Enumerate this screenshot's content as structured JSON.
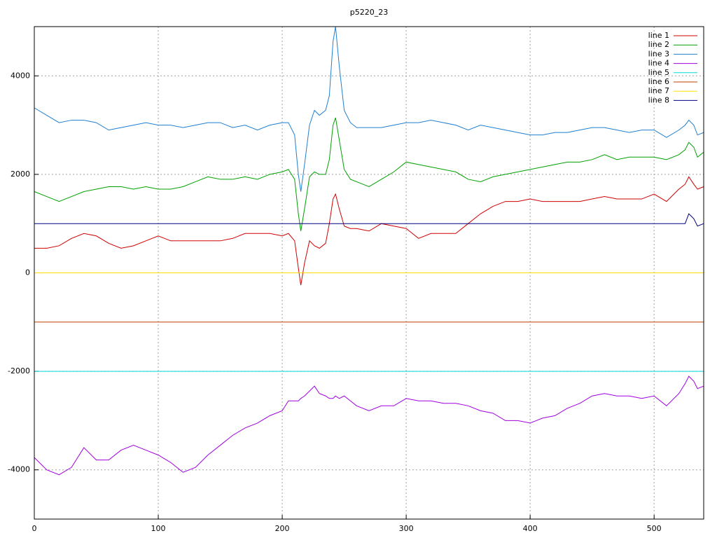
{
  "chart_data": {
    "type": "line",
    "title": "p5220_23",
    "x": [
      0,
      10,
      20,
      30,
      40,
      50,
      60,
      70,
      80,
      90,
      100,
      110,
      120,
      130,
      140,
      150,
      160,
      170,
      180,
      190,
      200,
      205,
      210,
      213,
      215,
      218,
      222,
      226,
      230,
      235,
      238,
      241,
      243,
      246,
      250,
      255,
      260,
      270,
      280,
      290,
      300,
      310,
      320,
      330,
      340,
      350,
      360,
      370,
      380,
      390,
      400,
      410,
      420,
      430,
      440,
      450,
      460,
      470,
      480,
      490,
      500,
      510,
      520,
      525,
      528,
      532,
      535,
      540
    ],
    "series": [
      {
        "name": "line 1",
        "color": "#d00000",
        "values": [
          500,
          500,
          550,
          700,
          800,
          750,
          600,
          500,
          550,
          650,
          750,
          650,
          650,
          650,
          650,
          650,
          700,
          800,
          800,
          800,
          750,
          800,
          650,
          100,
          -250,
          200,
          650,
          550,
          500,
          600,
          1000,
          1500,
          1600,
          1300,
          950,
          900,
          900,
          850,
          1000,
          950,
          900,
          700,
          800,
          800,
          800,
          1000,
          1200,
          1350,
          1450,
          1450,
          1500,
          1450,
          1450,
          1450,
          1450,
          1500,
          1550,
          1500,
          1500,
          1500,
          1600,
          1450,
          1700,
          1800,
          1950,
          1800,
          1700,
          1750
        ]
      },
      {
        "name": "line 2",
        "color": "#00a000",
        "values": [
          1650,
          1550,
          1450,
          1550,
          1650,
          1700,
          1750,
          1750,
          1700,
          1750,
          1700,
          1700,
          1750,
          1850,
          1950,
          1900,
          1900,
          1950,
          1900,
          2000,
          2050,
          2100,
          1900,
          1200,
          850,
          1300,
          1950,
          2050,
          2000,
          2000,
          2300,
          3000,
          3150,
          2700,
          2100,
          1900,
          1850,
          1750,
          1900,
          2050,
          2250,
          2200,
          2150,
          2100,
          2050,
          1900,
          1850,
          1950,
          2000,
          2050,
          2100,
          2150,
          2200,
          2250,
          2250,
          2300,
          2400,
          2300,
          2350,
          2350,
          2350,
          2300,
          2400,
          2500,
          2650,
          2550,
          2350,
          2450
        ]
      },
      {
        "name": "line 3",
        "color": "#1f7fd0",
        "values": [
          3350,
          3200,
          3050,
          3100,
          3100,
          3050,
          2900,
          2950,
          3000,
          3050,
          3000,
          3000,
          2950,
          3000,
          3050,
          3050,
          2950,
          3000,
          2900,
          3000,
          3050,
          3050,
          2800,
          2000,
          1650,
          2200,
          3000,
          3300,
          3200,
          3300,
          3600,
          4700,
          5000,
          4200,
          3300,
          3050,
          2950,
          2950,
          2950,
          3000,
          3050,
          3050,
          3100,
          3050,
          3000,
          2900,
          3000,
          2950,
          2900,
          2850,
          2800,
          2800,
          2850,
          2850,
          2900,
          2950,
          2950,
          2900,
          2850,
          2900,
          2900,
          2750,
          2900,
          3000,
          3100,
          3000,
          2800,
          2850
        ]
      },
      {
        "name": "line 4",
        "color": "#a000e0",
        "values": [
          -3750,
          -4000,
          -4100,
          -3950,
          -3550,
          -3800,
          -3800,
          -3600,
          -3500,
          -3600,
          -3700,
          -3850,
          -4050,
          -3950,
          -3700,
          -3500,
          -3300,
          -3150,
          -3050,
          -2900,
          -2800,
          -2600,
          -2600,
          -2600,
          -2550,
          -2500,
          -2400,
          -2300,
          -2450,
          -2500,
          -2550,
          -2550,
          -2500,
          -2550,
          -2500,
          -2600,
          -2700,
          -2800,
          -2700,
          -2700,
          -2550,
          -2600,
          -2600,
          -2650,
          -2650,
          -2700,
          -2800,
          -2850,
          -3000,
          -3000,
          -3050,
          -2950,
          -2900,
          -2750,
          -2650,
          -2500,
          -2450,
          -2500,
          -2500,
          -2550,
          -2500,
          -2700,
          -2450,
          -2250,
          -2100,
          -2200,
          -2350,
          -2300
        ]
      },
      {
        "name": "line 5",
        "color": "#00dcdc",
        "x": [
          0,
          540
        ],
        "values": [
          -2000,
          -2000
        ]
      },
      {
        "name": "line 6",
        "color": "#c04000",
        "x": [
          0,
          540
        ],
        "values": [
          -1000,
          -1000
        ]
      },
      {
        "name": "line 7",
        "color": "#ffe000",
        "x": [
          0,
          540
        ],
        "values": [
          0,
          0
        ]
      },
      {
        "name": "line 8",
        "color": "#000080",
        "x": [
          0,
          525,
          528,
          532,
          535,
          540
        ],
        "values": [
          1000,
          1000,
          1200,
          1100,
          950,
          1000
        ]
      }
    ],
    "xlim": [
      0,
      540
    ],
    "ylim": [
      -5000,
      5000
    ],
    "xticks": [
      0,
      100,
      200,
      300,
      400,
      500
    ],
    "yticks": [
      -4000,
      -2000,
      0,
      2000,
      4000
    ],
    "grid": true,
    "legend": "top-right"
  }
}
